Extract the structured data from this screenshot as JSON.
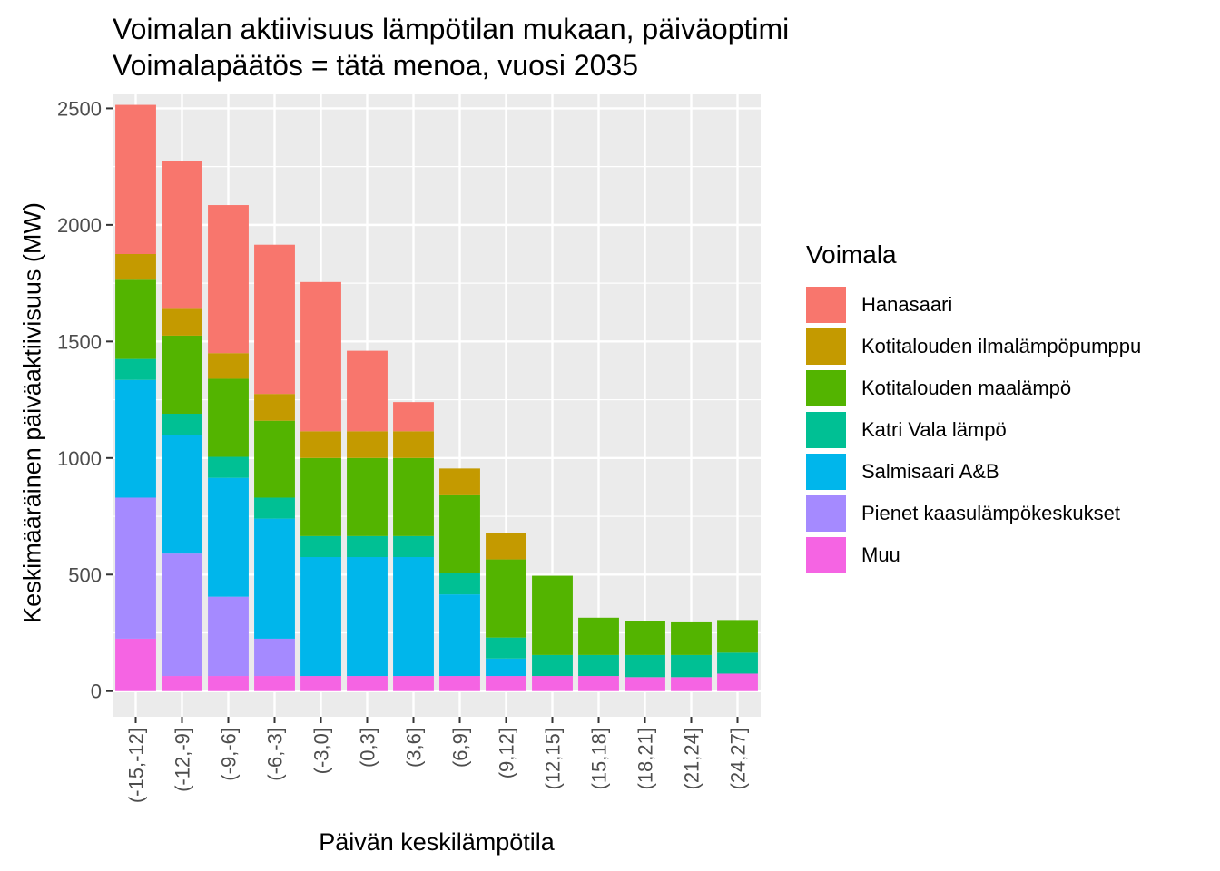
{
  "chart_data": {
    "type": "bar",
    "stacked": true,
    "title": "Voimalan aktiivisuus lämpötilan mukaan, päiväoptimi",
    "subtitle": "Voimalapäätös = tätä menoa, vuosi 2035",
    "xlabel": "Päivän keskilämpötila",
    "ylabel": "Keskimääräinen päiväaktiivisuus (MW)",
    "ylim": [
      -110,
      2560
    ],
    "yticks": [
      0,
      500,
      1000,
      1500,
      2000,
      2500
    ],
    "ytick_labels": [
      "0",
      "500",
      "1000",
      "1500",
      "2000",
      "2500"
    ],
    "grid": true,
    "legend_position": "right",
    "legend_title": "Voimala",
    "categories": [
      "(-15,-12]",
      "(-12,-9]",
      "(-9,-6]",
      "(-6,-3]",
      "(-3,0]",
      "(0,3]",
      "(3,6]",
      "(6,9]",
      "(9,12]",
      "(12,15]",
      "(15,18]",
      "(18,21]",
      "(21,24]",
      "(24,27]"
    ],
    "series": [
      {
        "name": "Muu",
        "color": "#F564E3",
        "values": [
          225,
          65,
          65,
          65,
          65,
          65,
          65,
          65,
          65,
          65,
          65,
          60,
          60,
          75
        ]
      },
      {
        "name": "Pienet kaasulämpökeskukset",
        "color": "#A58AFF",
        "values": [
          605,
          525,
          340,
          160,
          0,
          0,
          0,
          0,
          0,
          0,
          0,
          0,
          0,
          0
        ]
      },
      {
        "name": "Salmisaari A&B",
        "color": "#00B6EB",
        "values": [
          505,
          510,
          510,
          515,
          510,
          510,
          510,
          350,
          75,
          0,
          0,
          0,
          0,
          0
        ]
      },
      {
        "name": "Katri Vala lämpö",
        "color": "#00C094",
        "values": [
          90,
          90,
          90,
          90,
          90,
          90,
          90,
          90,
          90,
          90,
          90,
          95,
          95,
          90
        ]
      },
      {
        "name": "Kotitalouden maalämpö",
        "color": "#53B400",
        "values": [
          340,
          335,
          335,
          330,
          335,
          335,
          335,
          335,
          335,
          340,
          160,
          145,
          140,
          140
        ]
      },
      {
        "name": "Kotitalouden ilmalämpöpumppu",
        "color": "#C49A00",
        "values": [
          110,
          115,
          110,
          115,
          115,
          115,
          115,
          115,
          115,
          0,
          0,
          0,
          0,
          0
        ]
      },
      {
        "name": "Hanasaari",
        "color": "#F8766D",
        "values": [
          640,
          635,
          635,
          640,
          640,
          345,
          125,
          0,
          0,
          0,
          0,
          0,
          0,
          0
        ]
      }
    ],
    "legend_order": [
      "Hanasaari",
      "Kotitalouden ilmalämpöpumppu",
      "Kotitalouden maalämpö",
      "Katri Vala lämpö",
      "Salmisaari A&B",
      "Pienet kaasulämpökeskukset",
      "Muu"
    ]
  }
}
